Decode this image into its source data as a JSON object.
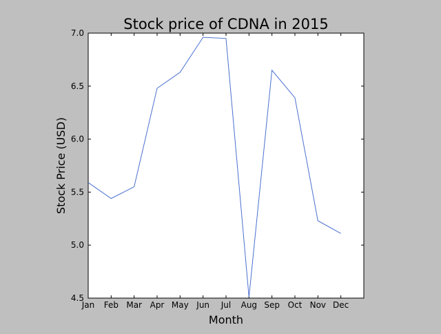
{
  "chart_data": {
    "type": "line",
    "title": "Stock price of CDNA in 2015",
    "xlabel": "Month",
    "ylabel": "Stock Price (USD)",
    "categories": [
      "Jan",
      "Feb",
      "Mar",
      "Apr",
      "May",
      "Jun",
      "Jul",
      "Aug",
      "Sep",
      "Oct",
      "Nov",
      "Dec"
    ],
    "series": [
      {
        "values": [
          5.59,
          5.44,
          5.55,
          6.48,
          6.63,
          6.96,
          6.95,
          4.51,
          6.65,
          6.39,
          5.23,
          5.11
        ]
      }
    ],
    "ylim": [
      4.5,
      7.0
    ],
    "xlim": [
      0,
      12
    ],
    "y_ticks": [
      "4.5",
      "5.0",
      "5.5",
      "6.0",
      "6.5",
      "7.0"
    ],
    "grid": false,
    "colors": {
      "line": "#4a6fd0",
      "figure_background": "#bfbfbf",
      "plot_background": "#ffffff"
    }
  }
}
